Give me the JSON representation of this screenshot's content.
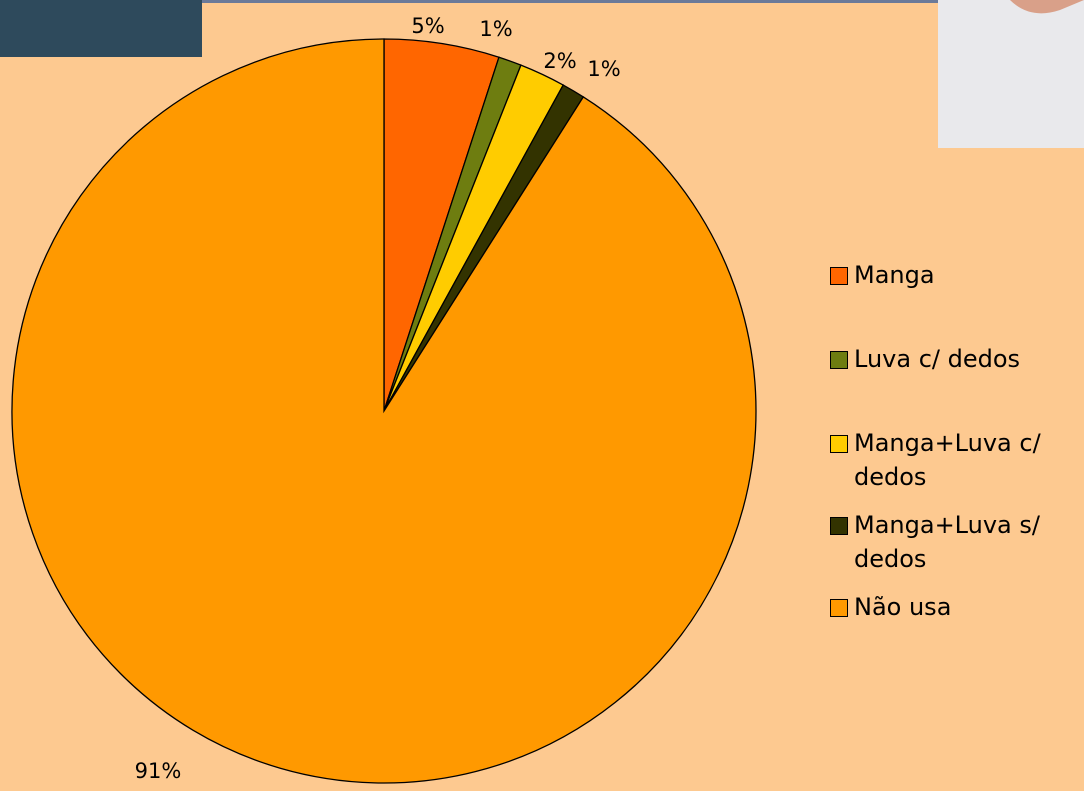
{
  "chart_data": {
    "type": "pie",
    "categories": [
      "Manga",
      "Luva c/ dedos",
      "Manga+Luva c/ dedos",
      "Manga+Luva s/ dedos",
      "Não usa"
    ],
    "values": [
      5,
      1,
      2,
      1,
      91
    ],
    "value_labels": [
      "5%",
      "1%",
      "2%",
      "1%",
      "91%"
    ],
    "colors": [
      "#ff6600",
      "#6e7d10",
      "#ffcc00",
      "#333300",
      "#ff9900"
    ],
    "legend": "right"
  }
}
